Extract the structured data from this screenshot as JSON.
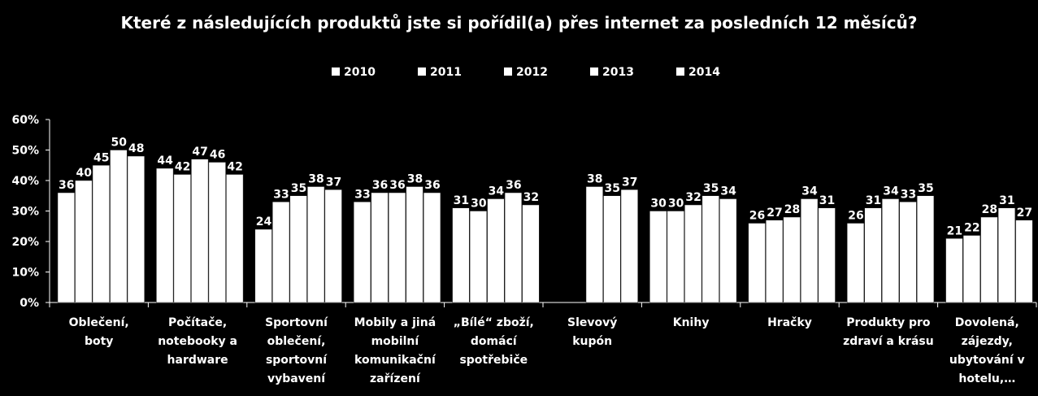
{
  "chart_data": {
    "type": "bar",
    "title": "Které z následujících produktů jste si pořídil(a) přes internet za posledních 12 měsíců?",
    "xlabel": "",
    "ylabel": "",
    "ylim": [
      0,
      60
    ],
    "yticks": [
      "0%",
      "10%",
      "20%",
      "30%",
      "40%",
      "50%",
      "60%"
    ],
    "legend_position": "top",
    "grid": false,
    "bar_color": "#ffffff",
    "categories": [
      [
        "Oblečení,",
        "boty"
      ],
      [
        "Počítače,",
        "notebooky a",
        "hardware"
      ],
      [
        "Sportovní",
        "oblečení,",
        "sportovní",
        "vybavení"
      ],
      [
        "Mobily a jiná",
        "mobilní",
        "komunikační",
        "zařízení"
      ],
      [
        "„Bílé“ zboží,",
        "domácí",
        "spotřebiče"
      ],
      [
        "Slevový",
        "kupón"
      ],
      [
        "Knihy"
      ],
      [
        "Hračky"
      ],
      [
        "Produkty pro",
        "zdraví a krásu"
      ],
      [
        "Dovolená,",
        "zájezdy,",
        "ubytování v",
        "hotelu,…"
      ]
    ],
    "series": [
      {
        "name": "2010",
        "values": [
          36,
          44,
          24,
          33,
          31,
          null,
          30,
          26,
          26,
          21
        ]
      },
      {
        "name": "2011",
        "values": [
          40,
          42,
          33,
          36,
          30,
          null,
          30,
          27,
          31,
          22
        ]
      },
      {
        "name": "2012",
        "values": [
          45,
          47,
          35,
          36,
          34,
          38,
          32,
          28,
          34,
          28
        ]
      },
      {
        "name": "2013",
        "values": [
          50,
          46,
          38,
          38,
          36,
          35,
          35,
          34,
          33,
          31
        ]
      },
      {
        "name": "2014",
        "values": [
          48,
          42,
          37,
          36,
          32,
          37,
          34,
          31,
          35,
          27
        ]
      }
    ]
  }
}
